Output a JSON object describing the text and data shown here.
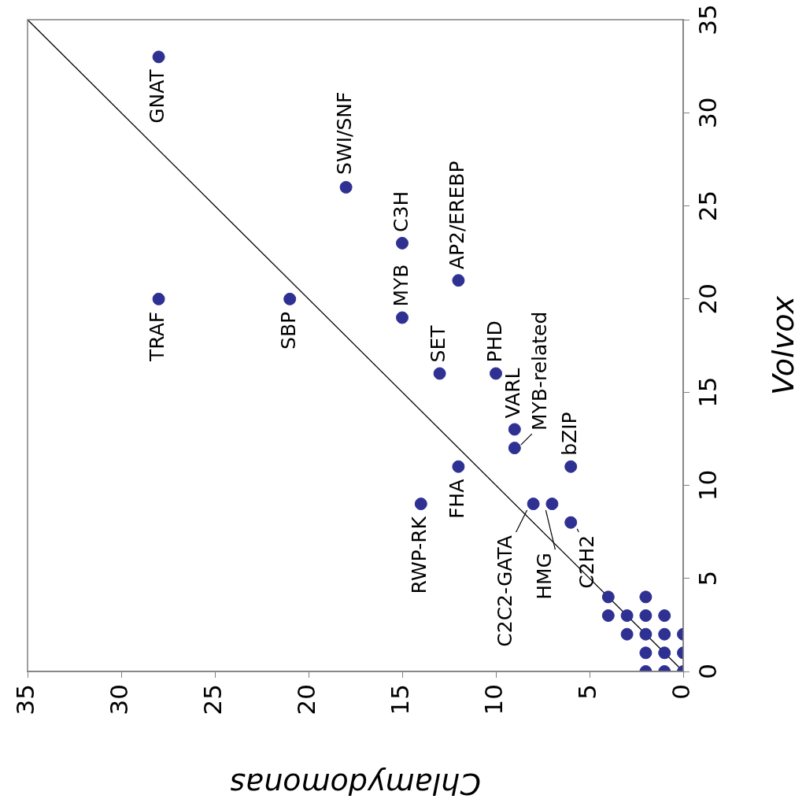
{
  "chart_data": {
    "type": "scatter",
    "xlabel": "Chlamydomonas",
    "ylabel": "Volvox",
    "xlim": [
      35,
      0
    ],
    "ylim": [
      0,
      35
    ],
    "xticks": [
      0,
      5,
      10,
      15,
      20,
      25,
      30,
      35
    ],
    "yticks": [
      0,
      5,
      10,
      15,
      20,
      25,
      30,
      35
    ],
    "grid": false,
    "legend": false,
    "marker": "circle",
    "series": [
      {
        "type": "scatter",
        "color": "#2e3192",
        "x": [
          28,
          28,
          21,
          18,
          15,
          15,
          12,
          13,
          10,
          9,
          9,
          6,
          12,
          14,
          8,
          7,
          6,
          4,
          4,
          3,
          3,
          2,
          2,
          2,
          2,
          2,
          1,
          1,
          1,
          1,
          0,
          0,
          0
        ],
        "values": [
          33,
          20,
          20,
          26,
          19,
          23,
          21,
          16,
          16,
          13,
          12,
          11,
          11,
          9,
          9,
          9,
          8,
          4,
          3,
          3,
          2,
          4,
          3,
          2,
          1,
          0,
          3,
          2,
          1,
          0,
          2,
          1,
          0
        ]
      },
      {
        "type": "line",
        "color": "#000000",
        "marker": "none",
        "x": [
          0,
          35
        ],
        "values": [
          0,
          35
        ]
      }
    ],
    "annotations": [
      {
        "text": "GNAT",
        "x": 28,
        "y": 33
      },
      {
        "text": "TRAF",
        "x": 28,
        "y": 20
      },
      {
        "text": "SBP",
        "x": 21,
        "y": 20
      },
      {
        "text": "SWI/SNF",
        "x": 18,
        "y": 26
      },
      {
        "text": "MYB",
        "x": 15,
        "y": 19
      },
      {
        "text": "C3H",
        "x": 15,
        "y": 23
      },
      {
        "text": "AP2/EREBP",
        "x": 12,
        "y": 21
      },
      {
        "text": "SET",
        "x": 13,
        "y": 16
      },
      {
        "text": "PHD",
        "x": 10,
        "y": 16
      },
      {
        "text": "VARL",
        "x": 9,
        "y": 13
      },
      {
        "text": "MYB-related",
        "x": 9,
        "y": 12
      },
      {
        "text": "bZIP",
        "x": 6,
        "y": 11
      },
      {
        "text": "FHA",
        "x": 12,
        "y": 11
      },
      {
        "text": "RWP-RK",
        "x": 14,
        "y": 9
      },
      {
        "text": "C2C2-GATA",
        "x": 8,
        "y": 9
      },
      {
        "text": "HMG",
        "x": 7,
        "y": 9
      },
      {
        "text": "C2H2",
        "x": 6,
        "y": 8
      }
    ]
  }
}
